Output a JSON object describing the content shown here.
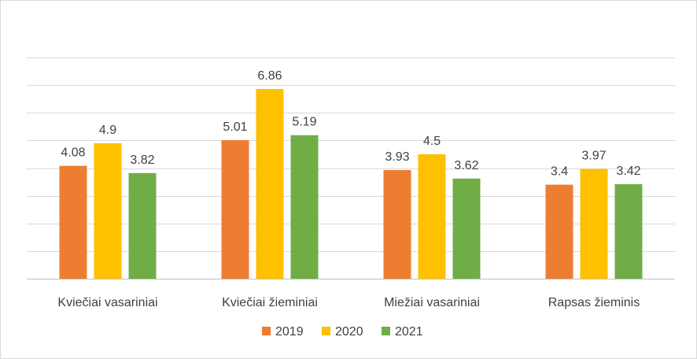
{
  "chart_data": {
    "type": "bar",
    "categories": [
      "Kviečiai vasariniai",
      "Kviečiai žieminiai",
      "Miežiai vasariniai",
      "Rapsas žieminis"
    ],
    "series": [
      {
        "name": "2019",
        "values": [
          4.08,
          5.01,
          3.93,
          3.4
        ],
        "labels": [
          "4.08",
          "5.01",
          "3.93",
          "3.4"
        ],
        "color": "#ED7D31"
      },
      {
        "name": "2020",
        "values": [
          4.9,
          6.86,
          4.5,
          3.97
        ],
        "labels": [
          "4.9",
          "6.86",
          "4.5",
          "3.97"
        ],
        "color": "#FFC000"
      },
      {
        "name": "2021",
        "values": [
          3.82,
          5.19,
          3.62,
          3.42
        ],
        "labels": [
          "3.82",
          "5.19",
          "3.62",
          "3.42"
        ],
        "color": "#70AD47"
      }
    ],
    "title": "",
    "xlabel": "",
    "ylabel": "",
    "ylim": [
      0,
      8
    ],
    "y_tick_labels_visible": false,
    "grid": true,
    "gridline_color": "#d9d9d9",
    "legend_position": "bottom"
  }
}
